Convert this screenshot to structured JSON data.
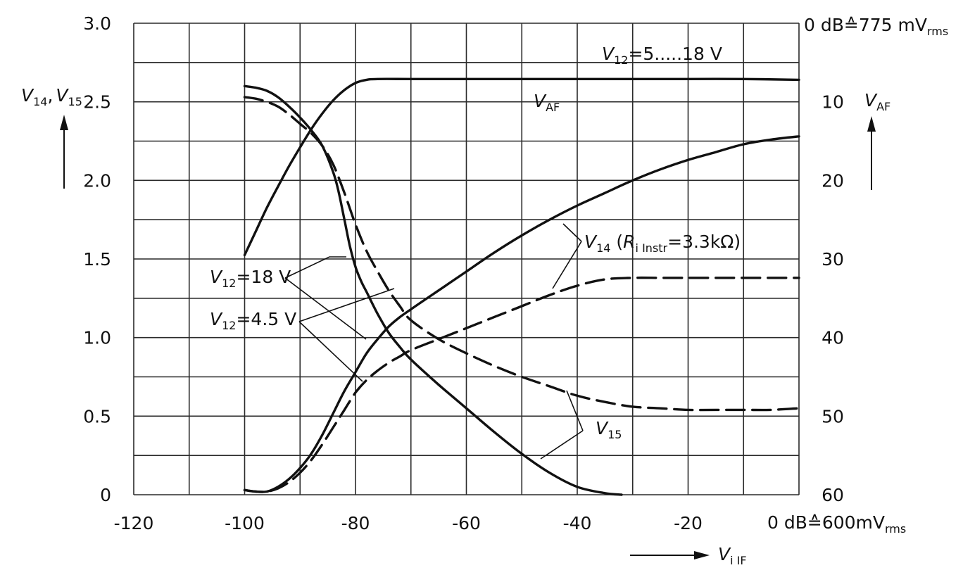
{
  "chart_data": {
    "type": "line",
    "x_axis": {
      "range": [
        -120,
        0
      ],
      "ticks": [
        "-120",
        "-100",
        "-80",
        "-60",
        "-40",
        "-20"
      ],
      "end_label_main": "0 dB",
      "end_label_equiv": "≙600mV",
      "end_label_sub": "rms",
      "label_main": "V",
      "label_sub": "i IF"
    },
    "y_left": {
      "range": [
        0,
        3.0
      ],
      "ticks": [
        "0",
        "0.5",
        "1.0",
        "1.5",
        "2.0",
        "2.5",
        "3.0"
      ],
      "label_a": "V",
      "label_a_sub": "14",
      "label_sep": ",",
      "label_b": "V",
      "label_b_sub": "15"
    },
    "y_right": {
      "range": [
        60,
        0
      ],
      "ticks": [
        "60",
        "50",
        "40",
        "30",
        "20",
        "10"
      ],
      "top_label_main": "0 dB",
      "top_label_equiv": "≙775 mV",
      "top_label_sub": "rms",
      "label_main": "V",
      "label_sub": "AF"
    },
    "grid": true,
    "series": [
      {
        "name": "V_AF",
        "axis": "right",
        "style": "solid",
        "x": [
          -100,
          -98,
          -96,
          -94,
          -92,
          -90,
          -88,
          -86,
          -84,
          -82,
          -80,
          -78,
          -76,
          -70,
          -60,
          -50,
          -40,
          -30,
          -20,
          -10,
          0
        ],
        "y": [
          29.5,
          26.5,
          23.5,
          20.8,
          18.2,
          15.8,
          13.5,
          11.5,
          9.8,
          8.5,
          7.6,
          7.2,
          7.1,
          7.1,
          7.1,
          7.1,
          7.1,
          7.1,
          7.1,
          7.1,
          7.2
        ]
      },
      {
        "name": "V_14 (V_12=18 V)",
        "axis": "left",
        "style": "solid",
        "x": [
          -100,
          -98,
          -96,
          -94,
          -92,
          -90,
          -88,
          -86,
          -84,
          -82,
          -80,
          -78,
          -76,
          -74,
          -72,
          -70,
          -65,
          -60,
          -55,
          -50,
          -45,
          -40,
          -35,
          -30,
          -25,
          -20,
          -15,
          -10,
          -5,
          0
        ],
        "y": [
          0.03,
          0.02,
          0.02,
          0.05,
          0.1,
          0.17,
          0.26,
          0.38,
          0.52,
          0.66,
          0.78,
          0.9,
          0.99,
          1.07,
          1.13,
          1.18,
          1.3,
          1.42,
          1.54,
          1.65,
          1.75,
          1.84,
          1.92,
          2.0,
          2.07,
          2.13,
          2.18,
          2.23,
          2.26,
          2.28
        ]
      },
      {
        "name": "V_14 (V_12=4.5 V)",
        "axis": "left",
        "style": "dashed",
        "x": [
          -100,
          -98,
          -96,
          -94,
          -92,
          -90,
          -88,
          -86,
          -84,
          -82,
          -80,
          -78,
          -76,
          -74,
          -72,
          -70,
          -65,
          -60,
          -55,
          -50,
          -45,
          -40,
          -35,
          -30,
          -25,
          -20,
          -15,
          -10,
          -5,
          0
        ],
        "y": [
          0.03,
          0.02,
          0.02,
          0.04,
          0.08,
          0.14,
          0.22,
          0.32,
          0.43,
          0.54,
          0.65,
          0.73,
          0.79,
          0.84,
          0.88,
          0.92,
          0.99,
          1.06,
          1.13,
          1.2,
          1.27,
          1.33,
          1.37,
          1.38,
          1.38,
          1.38,
          1.38,
          1.38,
          1.38,
          1.38
        ]
      },
      {
        "name": "V_15 (V_12=18 V)",
        "axis": "left",
        "style": "solid",
        "x": [
          -100,
          -98,
          -96,
          -94,
          -92,
          -90,
          -88,
          -86,
          -84,
          -83,
          -82,
          -81,
          -80,
          -79,
          -78,
          -76,
          -74,
          -72,
          -70,
          -65,
          -60,
          -55,
          -50,
          -45,
          -40,
          -35,
          -32
        ],
        "y": [
          2.6,
          2.59,
          2.57,
          2.53,
          2.47,
          2.4,
          2.32,
          2.22,
          2.05,
          1.92,
          1.75,
          1.58,
          1.45,
          1.36,
          1.29,
          1.15,
          1.03,
          0.94,
          0.86,
          0.7,
          0.55,
          0.4,
          0.26,
          0.14,
          0.05,
          0.01,
          0.0
        ]
      },
      {
        "name": "V_15 (V_12=4.5 V)",
        "axis": "left",
        "style": "dashed",
        "x": [
          -100,
          -98,
          -96,
          -94,
          -92,
          -90,
          -88,
          -86,
          -84,
          -82,
          -80,
          -78,
          -76,
          -74,
          -72,
          -70,
          -65,
          -60,
          -55,
          -50,
          -45,
          -40,
          -35,
          -30,
          -25,
          -20,
          -15,
          -10,
          -5,
          0
        ],
        "y": [
          2.53,
          2.52,
          2.5,
          2.47,
          2.42,
          2.36,
          2.3,
          2.22,
          2.1,
          1.92,
          1.72,
          1.55,
          1.42,
          1.3,
          1.2,
          1.11,
          0.99,
          0.9,
          0.82,
          0.75,
          0.69,
          0.63,
          0.59,
          0.56,
          0.55,
          0.54,
          0.54,
          0.54,
          0.54,
          0.55
        ]
      }
    ],
    "annotations": {
      "v12_range": {
        "main": "V",
        "sub": "12",
        "text": "=5.....18 V"
      },
      "v_af": {
        "main": "V",
        "sub": "AF"
      },
      "v14": {
        "main": "V",
        "sub": "14",
        "paren_open": " (",
        "r_main": "R",
        "r_sub": "i Instr",
        "rest": "=3.3kΩ)"
      },
      "v12_18": {
        "main": "V",
        "sub": "12",
        "text": "=18 V"
      },
      "v12_45": {
        "main": "V",
        "sub": "12",
        "text": "=4.5 V"
      },
      "v15": {
        "main": "V",
        "sub": "15"
      }
    }
  }
}
